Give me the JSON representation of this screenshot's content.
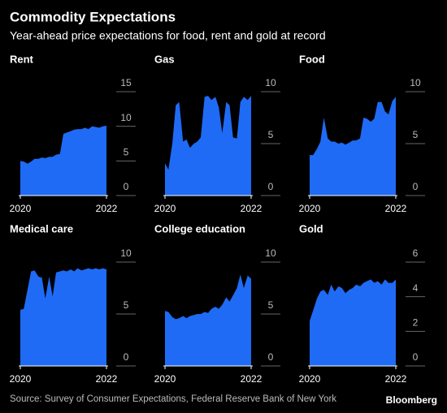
{
  "title": "Commodity Expectations",
  "subtitle": "Year-ahead price expectations for food, rent and gold at record",
  "source": "Source: Survey of Consumer Expectations, Federal Reserve Bank of New York",
  "credit": "Bloomberg",
  "chart_data": [
    {
      "type": "area",
      "title": "Rent",
      "color": "#1f6bf5",
      "x": [
        2020,
        2020.08,
        2020.17,
        2020.25,
        2020.33,
        2020.42,
        2020.5,
        2020.58,
        2020.67,
        2020.75,
        2020.83,
        2020.92,
        2021,
        2021.08,
        2021.17,
        2021.25,
        2021.33,
        2021.42,
        2021.5,
        2021.58,
        2021.67,
        2021.75,
        2021.83,
        2021.92,
        2022
      ],
      "values": [
        5.0,
        4.9,
        4.6,
        4.9,
        5.3,
        5.3,
        5.5,
        5.4,
        5.6,
        5.6,
        5.9,
        6.0,
        8.9,
        9.1,
        9.3,
        9.5,
        9.6,
        9.6,
        9.8,
        9.6,
        10.0,
        9.9,
        9.8,
        10.0,
        10.1
      ],
      "xlim": [
        2020,
        2022
      ],
      "xticks": [
        2020,
        2022
      ],
      "ylim": [
        0,
        15
      ],
      "yticks": [
        0,
        5,
        10,
        15
      ]
    },
    {
      "type": "area",
      "title": "Gas",
      "color": "#1f6bf5",
      "x": [
        2020,
        2020.08,
        2020.17,
        2020.25,
        2020.33,
        2020.42,
        2020.5,
        2020.58,
        2020.67,
        2020.75,
        2020.83,
        2020.92,
        2021,
        2021.08,
        2021.17,
        2021.25,
        2021.33,
        2021.42,
        2021.5,
        2021.58,
        2021.67,
        2021.75,
        2021.83,
        2021.92,
        2022
      ],
      "values": [
        3.1,
        2.5,
        5.0,
        8.7,
        9.0,
        5.2,
        5.4,
        4.6,
        5.0,
        5.2,
        5.6,
        9.5,
        9.6,
        9.2,
        9.5,
        8.5,
        6.0,
        9.0,
        8.7,
        5.6,
        5.5,
        9.0,
        9.5,
        9.2,
        9.6
      ],
      "xlim": [
        2020,
        2022
      ],
      "xticks": [
        2020,
        2022
      ],
      "ylim": [
        0,
        10
      ],
      "yticks": [
        0,
        5,
        10
      ]
    },
    {
      "type": "area",
      "title": "Food",
      "color": "#1f6bf5",
      "x": [
        2020,
        2020.08,
        2020.17,
        2020.25,
        2020.33,
        2020.42,
        2020.5,
        2020.58,
        2020.67,
        2020.75,
        2020.83,
        2020.92,
        2021,
        2021.08,
        2021.17,
        2021.25,
        2021.33,
        2021.42,
        2021.5,
        2021.58,
        2021.67,
        2021.75,
        2021.83,
        2021.92,
        2022
      ],
      "values": [
        3.9,
        3.9,
        4.5,
        5.2,
        7.5,
        5.5,
        5.2,
        5.2,
        5.0,
        5.1,
        4.9,
        5.1,
        5.3,
        5.3,
        5.5,
        7.5,
        7.4,
        7.1,
        7.4,
        9.0,
        9.0,
        8.1,
        7.8,
        9.1,
        9.5
      ],
      "xlim": [
        2020,
        2022
      ],
      "xticks": [
        2020,
        2022
      ],
      "ylim": [
        0,
        10
      ],
      "yticks": [
        0,
        5,
        10
      ]
    },
    {
      "type": "area",
      "title": "Medical care",
      "color": "#1f6bf5",
      "x": [
        2020,
        2020.08,
        2020.17,
        2020.25,
        2020.33,
        2020.42,
        2020.5,
        2020.58,
        2020.67,
        2020.75,
        2020.83,
        2020.92,
        2021,
        2021.08,
        2021.17,
        2021.25,
        2021.33,
        2021.42,
        2021.5,
        2021.58,
        2021.67,
        2021.75,
        2021.83,
        2021.92,
        2022
      ],
      "values": [
        5.4,
        5.5,
        7.4,
        9.1,
        9.2,
        8.6,
        8.5,
        6.5,
        8.6,
        6.7,
        9.0,
        9.1,
        9.2,
        9.1,
        9.3,
        9.1,
        9.4,
        9.2,
        9.3,
        9.4,
        9.3,
        9.4,
        9.3,
        9.4,
        9.3
      ],
      "xlim": [
        2020,
        2022
      ],
      "xticks": [
        2020,
        2022
      ],
      "ylim": [
        0,
        10
      ],
      "yticks": [
        0,
        5,
        10
      ]
    },
    {
      "type": "area",
      "title": "College education",
      "color": "#1f6bf5",
      "x": [
        2020,
        2020.08,
        2020.17,
        2020.25,
        2020.33,
        2020.42,
        2020.5,
        2020.58,
        2020.67,
        2020.75,
        2020.83,
        2020.92,
        2021,
        2021.08,
        2021.17,
        2021.25,
        2021.33,
        2021.42,
        2021.5,
        2021.58,
        2021.67,
        2021.75,
        2021.83,
        2021.92,
        2022
      ],
      "values": [
        5.3,
        5.2,
        4.7,
        4.5,
        4.6,
        4.8,
        4.6,
        4.8,
        4.9,
        5.0,
        5.0,
        5.2,
        5.1,
        5.5,
        5.7,
        5.5,
        5.9,
        6.6,
        6.2,
        6.8,
        7.5,
        8.8,
        7.5,
        8.7,
        8.4
      ],
      "xlim": [
        2020,
        2022
      ],
      "xticks": [
        2020,
        2022
      ],
      "ylim": [
        0,
        10
      ],
      "yticks": [
        0,
        5,
        10
      ]
    },
    {
      "type": "area",
      "title": "Gold",
      "color": "#1f6bf5",
      "x": [
        2020,
        2020.08,
        2020.17,
        2020.25,
        2020.33,
        2020.42,
        2020.5,
        2020.58,
        2020.67,
        2020.75,
        2020.83,
        2020.92,
        2021,
        2021.08,
        2021.17,
        2021.25,
        2021.33,
        2021.42,
        2021.5,
        2021.58,
        2021.67,
        2021.75,
        2021.83,
        2021.92,
        2022
      ],
      "values": [
        2.6,
        3.2,
        3.9,
        4.3,
        4.4,
        4.1,
        4.7,
        4.3,
        4.6,
        4.5,
        4.2,
        4.4,
        4.5,
        4.7,
        4.6,
        4.8,
        4.9,
        5.0,
        4.8,
        4.9,
        4.7,
        5.0,
        4.8,
        4.8,
        5.0
      ],
      "xlim": [
        2020,
        2022
      ],
      "xticks": [
        2020,
        2022
      ],
      "ylim": [
        0,
        6
      ],
      "yticks": [
        0,
        2,
        4,
        6
      ]
    }
  ]
}
